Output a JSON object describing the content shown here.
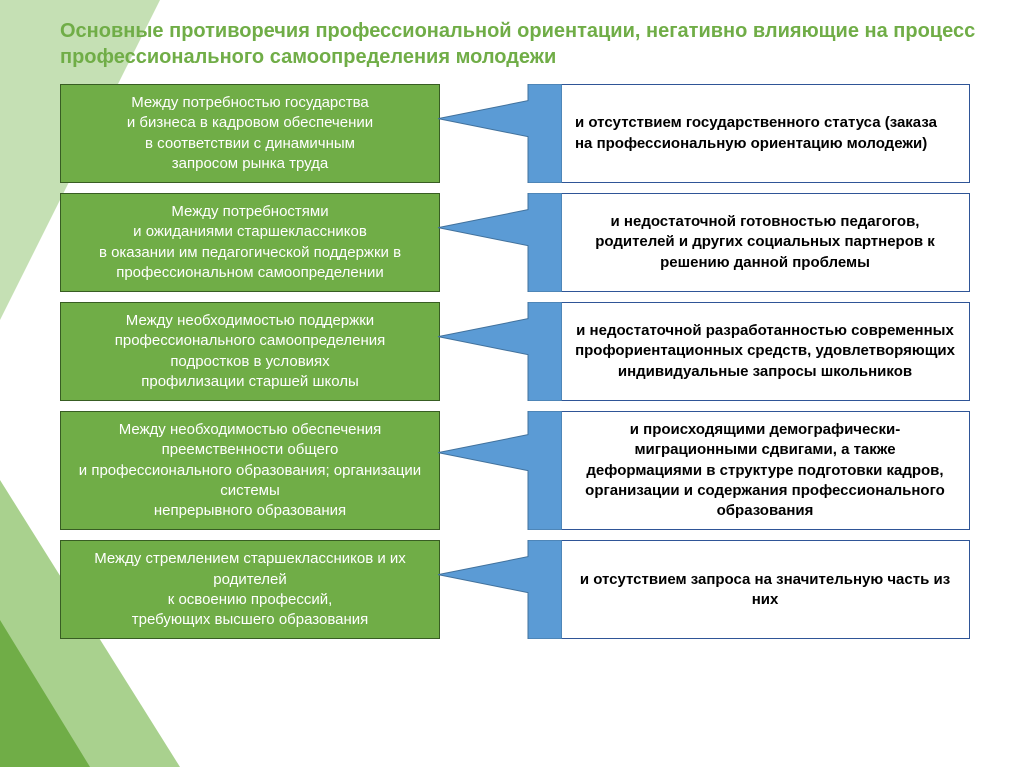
{
  "title": "Основные противоречия профессиональной ориентации,\n негативно влияющие на процесс профессионального самоопределения молодежи",
  "colors": {
    "title": "#70ad47",
    "left_bg": "#70ad47",
    "left_border": "#385d23",
    "left_text": "#ffffff",
    "right_bg": "#ffffff",
    "right_border": "#2f5597",
    "right_text": "#000000",
    "callout_fill": "#5b9bd5",
    "callout_stroke": "#41719c",
    "tri1": "#c5e0b4",
    "tri2": "#a9d18e",
    "tri3": "#70ad47"
  },
  "rows": [
    {
      "left": "Между потребностью государства\nи бизнеса в кадровом обеспечении\nв соответствии с динамичным\nзапросом рынка труда",
      "right": "и отсутствием государственного статуса (заказа на профессиональную ориентацию молодежи)",
      "right_align": "left"
    },
    {
      "left": "Между потребностями\nи ожиданиями старшеклассников\nв оказании  им педагогической поддержки в профессиональном самоопределении",
      "right": "и недостаточной готовностью педагогов, родителей и других социальных партнеров к решению данной проблемы",
      "right_align": "center"
    },
    {
      "left": "Между необходимостью поддержки профессионального самоопределения подростков в условиях\nпрофилизации старшей школы",
      "right": "и недостаточной разработанностью современных профориентационных средств, удовлетворяющих индивидуальные запросы школьников",
      "right_align": "center"
    },
    {
      "left": "Между необходимостью обеспечения преемственности общего\nи профессионального образования; организации системы\nнепрерывного образования",
      "right": "и происходящими демографически-миграционными сдвигами, а также деформациями в структуре подготовки кадров, организации и содержания профессионального образования",
      "right_align": "center"
    },
    {
      "left": "Между стремлением старшеклассников и их родителей\nк освоению профессий,\nтребующих высшего образования",
      "right": "и отсутствием запроса на значительную часть из них",
      "right_align": "center"
    }
  ]
}
